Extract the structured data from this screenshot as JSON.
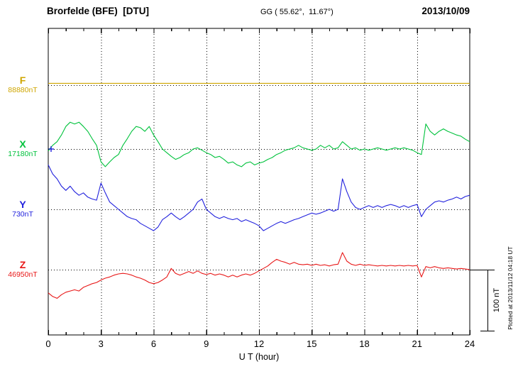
{
  "header": {
    "station": "Brorfelde (BFE)  [DTU]",
    "coords": "GG ( 55.62°,  11.67°)",
    "date": "2013/10/09"
  },
  "axes": {
    "xlabel": "U T (hour)",
    "xlim": [
      0,
      24
    ],
    "xticks": [
      0,
      3,
      6,
      9,
      12,
      15,
      18,
      21,
      24
    ],
    "minor_tick_hours": 1,
    "grid": "dotted horizontal baseline per component, dotted vertical every 3 hours"
  },
  "scalebar": {
    "label": "100 nT",
    "nT": 100
  },
  "footer": {
    "plotted_at": "Plotted at 2013/11/12 04:18 UT"
  },
  "chart_data": {
    "type": "line",
    "title": "Brorfelde (BFE) [DTU] magnetogram 2013/10/09",
    "xlabel": "U T (hour)",
    "xlim": [
      0,
      24
    ],
    "x_start": 0,
    "x_step_hours": 0.25,
    "y_unit": "nT",
    "scale_reference_nT": 100,
    "legend_position": "left-baseline-labels",
    "series": [
      {
        "name": "F",
        "baseline_nT": 88880,
        "baseline_label": "88880nT",
        "color": "#cfa600",
        "offsets_nT": [
          3,
          3,
          3,
          3,
          3,
          3,
          3,
          3,
          3,
          3,
          3,
          3,
          3,
          3,
          3,
          3,
          3,
          3,
          3,
          3,
          3,
          3,
          3,
          3,
          3,
          3,
          3,
          3,
          3,
          3,
          3,
          3,
          3,
          3,
          3,
          3,
          3,
          3,
          3,
          3,
          3,
          3,
          3,
          3,
          3,
          3,
          3,
          3,
          3,
          3,
          3,
          3,
          3,
          3,
          3,
          3,
          3,
          3,
          3,
          3,
          3,
          3,
          3,
          3,
          3,
          3,
          3,
          3,
          3,
          3,
          3,
          3,
          3,
          3,
          3,
          3,
          3,
          3,
          3,
          3,
          3,
          3,
          3,
          3,
          3,
          3,
          3,
          3,
          3,
          3,
          3,
          3,
          3,
          3,
          3,
          3,
          3
        ]
      },
      {
        "name": "X",
        "baseline_nT": 17180,
        "baseline_label": "17180nT",
        "color": "#00c23c",
        "offsets_nT": [
          -3,
          6,
          12,
          23,
          37,
          44,
          41,
          44,
          37,
          29,
          17,
          6,
          -21,
          -29,
          -21,
          -14,
          -9,
          6,
          17,
          29,
          37,
          35,
          29,
          37,
          23,
          12,
          0,
          -6,
          -12,
          -17,
          -14,
          -9,
          -6,
          0,
          2,
          -2,
          -6,
          -9,
          -14,
          -12,
          -17,
          -23,
          -21,
          -26,
          -29,
          -23,
          -21,
          -26,
          -23,
          -21,
          -17,
          -14,
          -9,
          -6,
          -2,
          0,
          2,
          6,
          2,
          0,
          -2,
          0,
          6,
          2,
          6,
          0,
          2,
          12,
          6,
          0,
          2,
          -2,
          0,
          -2,
          0,
          2,
          0,
          -2,
          0,
          2,
          0,
          2,
          0,
          -2,
          -6,
          -9,
          41,
          29,
          23,
          29,
          33,
          29,
          26,
          23,
          21,
          16,
          12
        ]
      },
      {
        "name": "Y",
        "baseline_nT": 730,
        "baseline_label": "730nT",
        "color": "#2222dd",
        "offsets_nT": [
          73,
          58,
          50,
          38,
          31,
          38,
          29,
          23,
          27,
          20,
          17,
          15,
          43,
          27,
          12,
          6,
          0,
          -6,
          -12,
          -15,
          -17,
          -23,
          -27,
          -31,
          -35,
          -29,
          -17,
          -12,
          -6,
          -12,
          -17,
          -12,
          -6,
          0,
          12,
          17,
          0,
          -6,
          -12,
          -15,
          -12,
          -15,
          -17,
          -15,
          -20,
          -17,
          -20,
          -23,
          -27,
          -35,
          -31,
          -27,
          -23,
          -20,
          -23,
          -20,
          -17,
          -15,
          -12,
          -9,
          -6,
          -8,
          -6,
          -3,
          0,
          -3,
          0,
          50,
          29,
          12,
          3,
          0,
          3,
          6,
          3,
          6,
          3,
          6,
          8,
          6,
          3,
          6,
          3,
          6,
          8,
          -12,
          0,
          6,
          12,
          14,
          12,
          15,
          17,
          20,
          17,
          21,
          23
        ]
      },
      {
        "name": "Z",
        "baseline_nT": 46950,
        "baseline_label": "46950nT",
        "color": "#e81717",
        "offsets_nT": [
          -38,
          -44,
          -47,
          -41,
          -37,
          -35,
          -33,
          -35,
          -29,
          -26,
          -23,
          -21,
          -17,
          -14,
          -12,
          -9,
          -7,
          -6,
          -7,
          -9,
          -12,
          -14,
          -17,
          -21,
          -23,
          -21,
          -17,
          -12,
          2,
          -6,
          -9,
          -6,
          -3,
          -6,
          -2,
          -6,
          -8,
          -6,
          -9,
          -7,
          -9,
          -12,
          -9,
          -12,
          -9,
          -7,
          -9,
          -6,
          -2,
          2,
          6,
          12,
          17,
          14,
          12,
          9,
          12,
          9,
          8,
          9,
          7,
          9,
          7,
          8,
          6,
          8,
          9,
          28,
          14,
          9,
          7,
          9,
          7,
          8,
          7,
          6,
          7,
          6,
          7,
          6,
          7,
          6,
          7,
          6,
          7,
          -12,
          5,
          3,
          5,
          3,
          2,
          3,
          2,
          1,
          2,
          1,
          0
        ]
      }
    ]
  }
}
